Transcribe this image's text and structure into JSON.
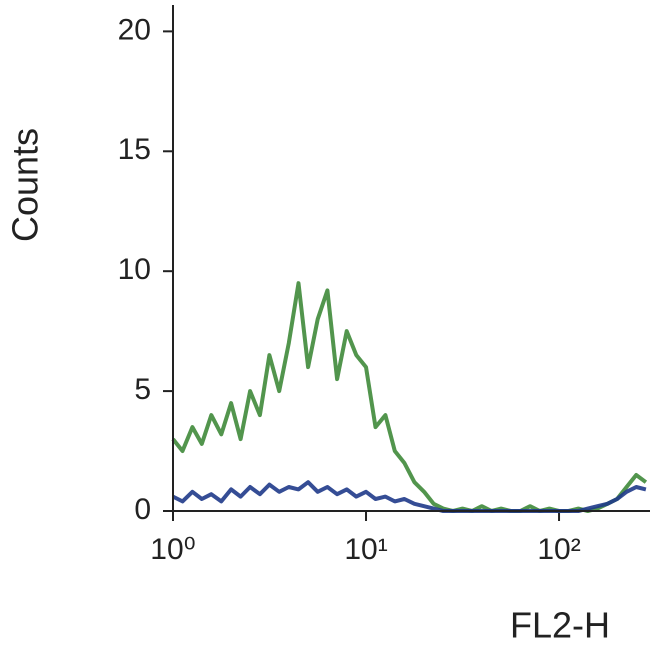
{
  "chart_data": {
    "type": "line",
    "x_label": "FL2-H",
    "y_label": "Counts",
    "x_log": true,
    "x": [
      1,
      1.12,
      1.26,
      1.41,
      1.58,
      1.78,
      2,
      2.24,
      2.51,
      2.82,
      3.16,
      3.55,
      3.98,
      4.47,
      5.01,
      5.62,
      6.31,
      7.08,
      7.94,
      8.91,
      10,
      11.2,
      12.6,
      14.1,
      15.8,
      17.8,
      20,
      22.4,
      25.1,
      28.2,
      31.6,
      35.5,
      39.8,
      44.7,
      50.1,
      56.2,
      63.1,
      70.8,
      79.4,
      89.1,
      100,
      112,
      126,
      141,
      158,
      178,
      200,
      224,
      251,
      282
    ],
    "series": [
      {
        "color": "#3f8a3a",
        "values": [
          3,
          2.5,
          3.5,
          2.8,
          4,
          3.2,
          4.5,
          3,
          5,
          4,
          6.5,
          5,
          7,
          9.5,
          6,
          8,
          9.2,
          5.5,
          7.5,
          6.5,
          6,
          3.5,
          4,
          2.5,
          2,
          1.2,
          0.8,
          0.3,
          0.1,
          0,
          0.1,
          0,
          0.2,
          0,
          0.1,
          0,
          0,
          0.2,
          0,
          0.1,
          0,
          0,
          0.1,
          0,
          0.1,
          0.3,
          0.5,
          1,
          1.5,
          1.2
        ]
      },
      {
        "color": "#1f3a8a",
        "values": [
          0.6,
          0.4,
          0.8,
          0.5,
          0.7,
          0.4,
          0.9,
          0.6,
          1,
          0.7,
          1.1,
          0.8,
          1,
          0.9,
          1.2,
          0.8,
          1,
          0.7,
          0.9,
          0.6,
          0.8,
          0.5,
          0.6,
          0.4,
          0.5,
          0.3,
          0.2,
          0.1,
          0,
          0,
          0,
          0,
          0,
          0,
          0,
          0,
          0,
          0,
          0,
          0,
          0,
          0,
          0,
          0.1,
          0.2,
          0.3,
          0.5,
          0.8,
          1,
          0.9
        ]
      }
    ],
    "xlim": [
      1,
      296
    ],
    "xticks": [
      {
        "value": 1,
        "label": "10⁰"
      },
      {
        "value": 10,
        "label": "10¹"
      },
      {
        "value": 100,
        "label": "10²"
      }
    ],
    "ylim": [
      0,
      21.1
    ],
    "yticks": [
      0,
      5,
      10,
      15,
      20
    ]
  }
}
